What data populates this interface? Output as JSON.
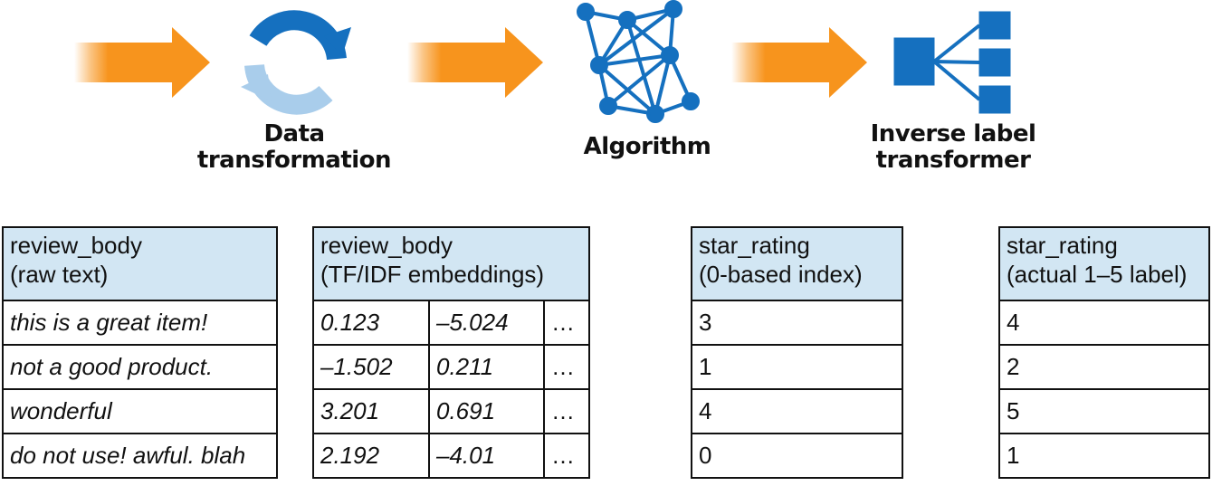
{
  "stages": {
    "data_transformation": {
      "line1": "Data",
      "line2": "transformation"
    },
    "algorithm": {
      "line1": "Algorithm"
    },
    "inverse_label_transformer": {
      "line1": "Inverse label",
      "line2": "transformer"
    }
  },
  "icons": {
    "arrow": "right-arrow-icon",
    "transform": "refresh-cycle-icon",
    "algorithm": "network-graph-icon",
    "inverse": "hierarchy-tree-icon"
  },
  "colors": {
    "arrow": "#f7941d",
    "icon_blue": "#1570bf",
    "icon_light_blue": "#a9cdeb",
    "header_fill": "#d2e6f3"
  },
  "tables": {
    "raw": {
      "header_line1": "review_body",
      "header_line2": "(raw text)",
      "rows": [
        "this is a great item!",
        "not a good product.",
        "wonderful",
        "do not use! awful. blah"
      ]
    },
    "tfidf": {
      "header_line1": "review_body",
      "header_line2": "(TF/IDF embeddings)",
      "rows": [
        [
          "0.123",
          "–5.024",
          "…"
        ],
        [
          "–1.502",
          "0.211",
          "…"
        ],
        [
          "3.201",
          "0.691",
          "…"
        ],
        [
          "2.192",
          "–4.01",
          "…"
        ]
      ]
    },
    "star_index": {
      "header_line1": "star_rating",
      "header_line2": "(0-based index)",
      "rows": [
        "3",
        "1",
        "4",
        "0"
      ]
    },
    "star_label": {
      "header_line1": "star_rating",
      "header_line2": "(actual 1–5 label)",
      "rows": [
        "4",
        "2",
        "5",
        "1"
      ]
    }
  }
}
